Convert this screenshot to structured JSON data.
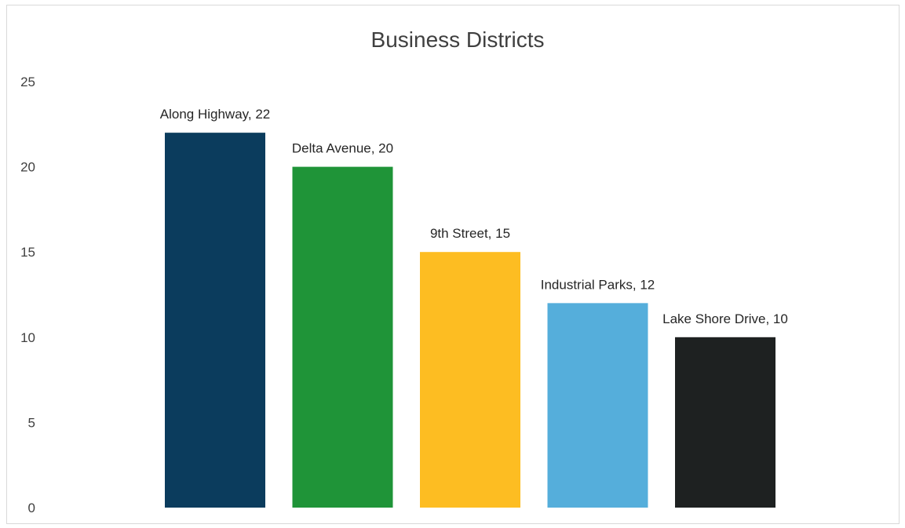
{
  "chart_data": {
    "type": "bar",
    "title": "Business Districts",
    "xlabel": "",
    "ylabel": "",
    "categories": [
      "Along Highway",
      "Delta Avenue",
      "9th Street",
      "Industrial Parks",
      "Lake Shore Drive"
    ],
    "values": [
      22,
      20,
      15,
      12,
      10
    ],
    "data_labels": [
      "Along Highway, 22",
      "Delta Avenue, 20",
      "9th Street, 15",
      "Industrial Parks, 12",
      "Lake Shore Drive, 10"
    ],
    "colors": [
      "#0b3c5d",
      "#1f9438",
      "#fdbd22",
      "#55aedb",
      "#1e2121"
    ],
    "ylim": [
      0,
      25
    ],
    "y_ticks": [
      0,
      5,
      10,
      15,
      20,
      25
    ],
    "grid": false,
    "legend": "none"
  }
}
